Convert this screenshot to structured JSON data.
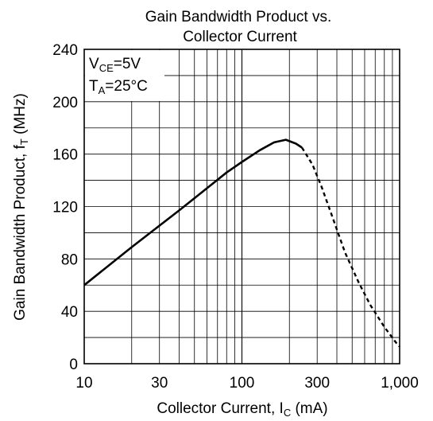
{
  "chart_data": {
    "type": "line",
    "title_line1": "Gain Bandwidth Product vs.",
    "title_line2": "Collector Current",
    "xlabel": "Collector Current, I",
    "xlabel_sub": "C",
    "xlabel_suffix": " (mA)",
    "ylabel": "Gain Bandwidth Product, f",
    "ylabel_sub": "T",
    "ylabel_suffix": " (MHz)",
    "x_scale": "log",
    "xlim": [
      10,
      1000
    ],
    "ylim": [
      0,
      240
    ],
    "grid": true,
    "x_ticks": [
      10,
      30,
      100,
      300,
      1000
    ],
    "x_tick_labels": [
      "10",
      "30",
      "100",
      "300",
      "1,000"
    ],
    "y_ticks": [
      0,
      40,
      80,
      120,
      160,
      200,
      240
    ],
    "y_tick_labels": [
      "0",
      "40",
      "80",
      "120",
      "160",
      "200",
      "240"
    ],
    "annotation1": {
      "main": "V",
      "sub": "CE",
      "rest": "=5V"
    },
    "annotation2": {
      "main": "T",
      "sub": "A",
      "rest": "=25°C"
    },
    "series": [
      {
        "style": "solid",
        "points": [
          [
            10,
            60
          ],
          [
            20,
            89
          ],
          [
            40,
            117
          ],
          [
            60,
            134
          ],
          [
            80,
            146
          ],
          [
            100,
            154
          ],
          [
            130,
            163
          ],
          [
            160,
            169
          ],
          [
            190,
            171
          ],
          [
            220,
            168
          ],
          [
            240,
            165
          ]
        ]
      },
      {
        "style": "dashed",
        "points": [
          [
            240,
            165
          ],
          [
            280,
            152
          ],
          [
            320,
            135
          ],
          [
            380,
            110
          ],
          [
            450,
            85
          ],
          [
            550,
            62
          ],
          [
            650,
            45
          ],
          [
            800,
            28
          ],
          [
            950,
            16
          ],
          [
            1000,
            13
          ]
        ]
      }
    ]
  }
}
